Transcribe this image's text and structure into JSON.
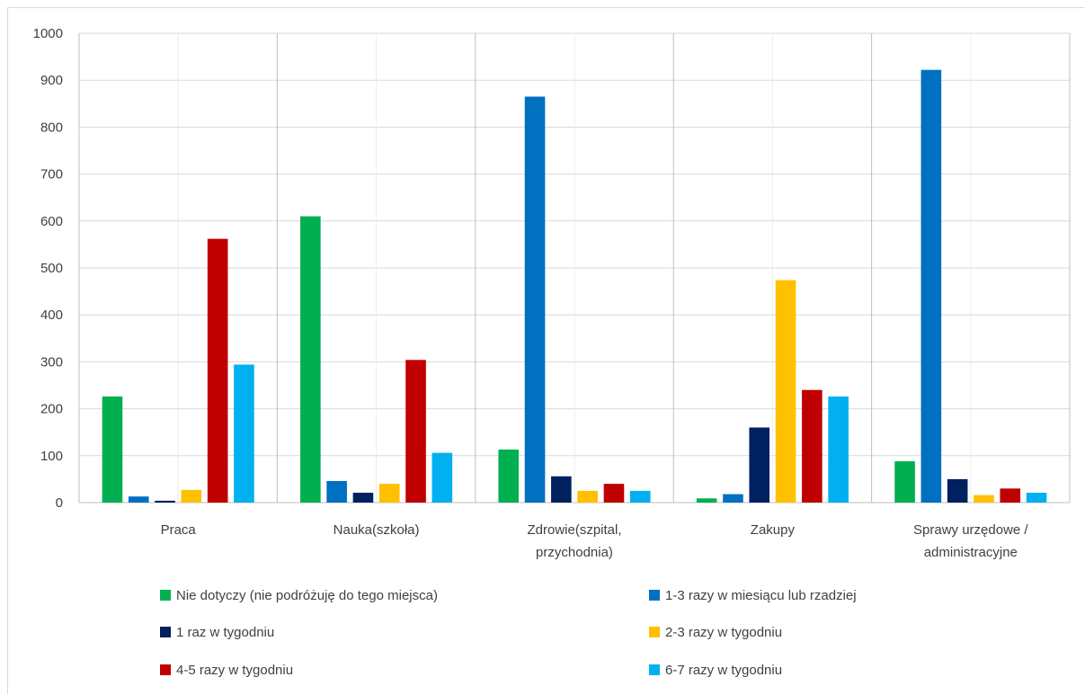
{
  "chart_data": {
    "type": "bar",
    "categories": [
      [
        "Praca"
      ],
      [
        "Nauka(szkoła)"
      ],
      [
        "Zdrowie(szpital,",
        "przychodnia)"
      ],
      [
        "Zakupy"
      ],
      [
        "Sprawy urzędowe /",
        "administracyjne"
      ]
    ],
    "series": [
      {
        "name": "Nie dotyczy (nie podróżuję do tego miejsca)",
        "color": "#00b050",
        "values": [
          226,
          610,
          113,
          9,
          88
        ]
      },
      {
        "name": "1-3 razy w miesiącu lub rzadziej",
        "color": "#0070c0",
        "values": [
          13,
          46,
          865,
          18,
          922
        ]
      },
      {
        "name": "1 raz w tygodniu",
        "color": "#002060",
        "values": [
          4,
          21,
          56,
          160,
          50
        ]
      },
      {
        "name": "2-3 razy w tygodniu",
        "color": "#ffc000",
        "values": [
          27,
          40,
          25,
          474,
          16
        ]
      },
      {
        "name": "4-5 razy w tygodniu",
        "color": "#c00000",
        "values": [
          562,
          304,
          40,
          240,
          30
        ]
      },
      {
        "name": "6-7 razy w tygodniu",
        "color": "#00b0f0",
        "values": [
          294,
          106,
          25,
          226,
          21
        ]
      }
    ],
    "ylim": [
      0,
      1000
    ],
    "yticks": [
      0,
      100,
      200,
      300,
      400,
      500,
      600,
      700,
      800,
      900,
      1000
    ],
    "grid": true,
    "legend": "bottom"
  }
}
